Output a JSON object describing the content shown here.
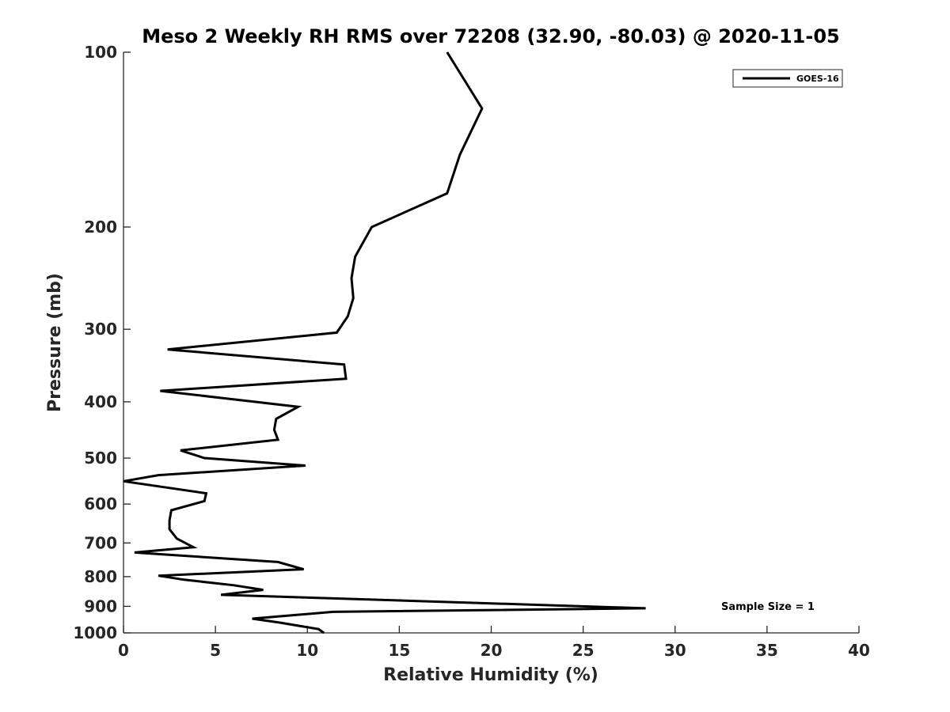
{
  "chart_data": {
    "type": "line",
    "title": "Meso 2 Weekly RH RMS over 72208 (32.90, -80.03) @ 2020-11-05",
    "xlabel": "Relative Humidity (%)",
    "ylabel": "Pressure (mb)",
    "xlim": [
      0,
      40
    ],
    "ylim": [
      100,
      1000
    ],
    "y_scale": "log",
    "y_reversed": true,
    "grid": false,
    "legend_position": "top-right",
    "x_ticks": [
      "0",
      "5",
      "10",
      "15",
      "20",
      "25",
      "30",
      "35",
      "40"
    ],
    "y_ticks": [
      "100",
      "200",
      "300",
      "400",
      "500",
      "600",
      "700",
      "800",
      "900",
      "1000"
    ],
    "series": [
      {
        "name": "GOES-16",
        "color": "#000000",
        "x": [
          17.6,
          19.5,
          18.3,
          17.6,
          13.5,
          12.6,
          12.4,
          12.5,
          12.2,
          11.6,
          2.4,
          12.0,
          12.1,
          2.0,
          9.5,
          8.3,
          8.2,
          8.4,
          3.1,
          4.4,
          9.9,
          1.9,
          0.0,
          4.5,
          4.4,
          2.6,
          2.5,
          2.5,
          2.9,
          3.8,
          0.6,
          8.4,
          9.8,
          1.9,
          3.3,
          6.0,
          7.6,
          5.3,
          28.4,
          11.4,
          7.0,
          8.5,
          10.6,
          10.9
        ],
        "y": [
          100,
          125,
          150,
          175,
          200,
          225,
          245,
          265,
          285,
          304,
          325,
          345,
          365,
          383,
          408,
          428,
          447,
          465,
          485,
          500,
          515,
          535,
          548,
          575,
          593,
          615,
          640,
          663,
          688,
          712,
          727,
          755,
          777,
          797,
          810,
          828,
          843,
          860,
          907,
          920,
          945,
          960,
          985,
          1000
        ]
      }
    ],
    "annotations": [
      "Sample Size = 1"
    ]
  }
}
